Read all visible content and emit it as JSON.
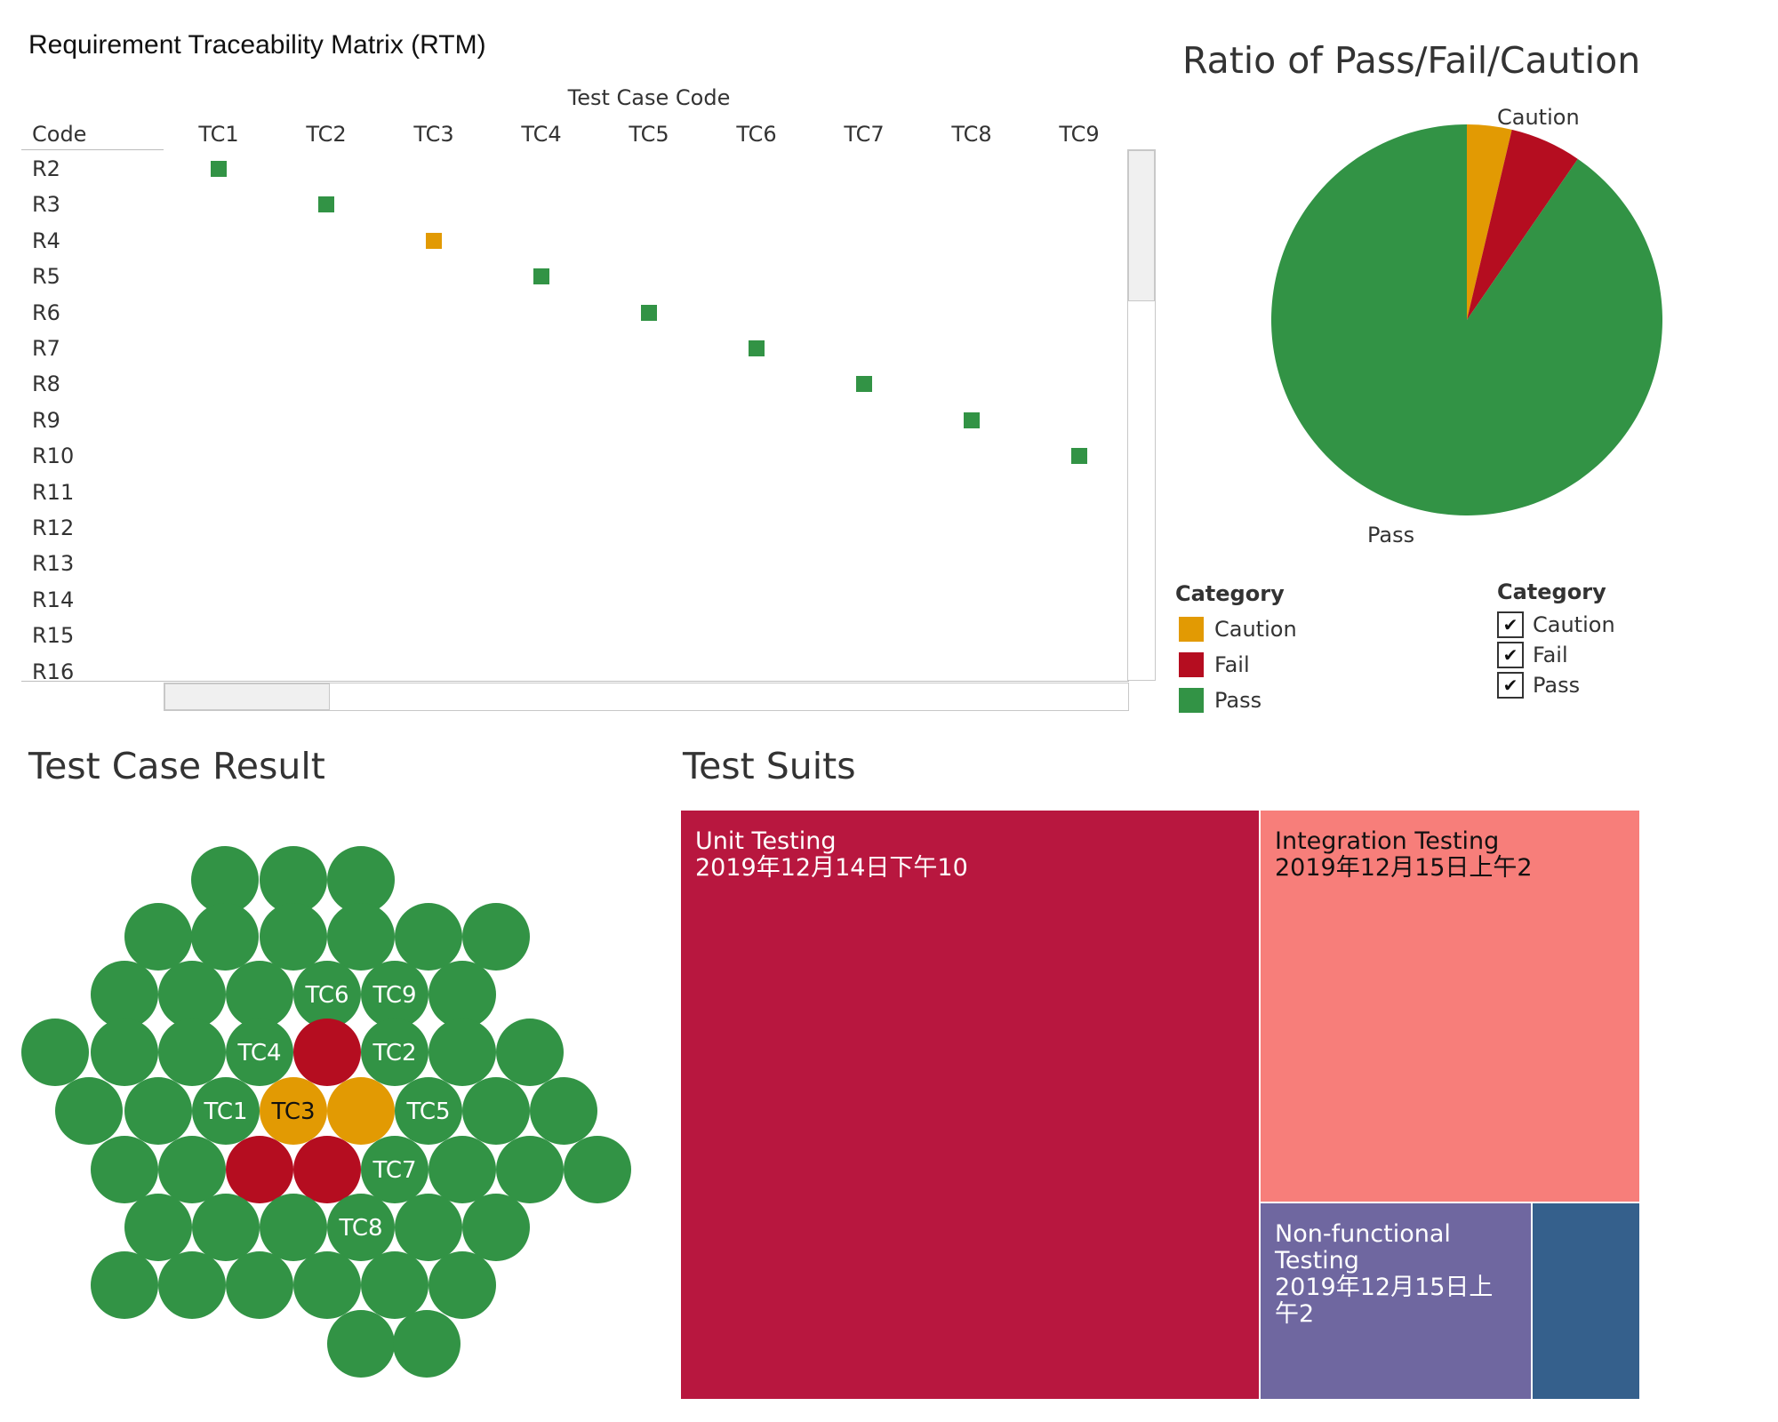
{
  "rtm": {
    "title": "Requirement Traceability Matrix (RTM)",
    "axis_title": "Test Case Code",
    "code_header": "Code",
    "columns": [
      "TC1",
      "TC2",
      "TC3",
      "TC4",
      "TC5",
      "TC6",
      "TC7",
      "TC8",
      "TC9"
    ],
    "rows": [
      "R2",
      "R3",
      "R4",
      "R5",
      "R6",
      "R7",
      "R8",
      "R9",
      "R10",
      "R11",
      "R12",
      "R13",
      "R14",
      "R15",
      "R16"
    ],
    "cells": [
      {
        "row": "R2",
        "col": "TC1",
        "category": "Pass"
      },
      {
        "row": "R3",
        "col": "TC2",
        "category": "Pass"
      },
      {
        "row": "R4",
        "col": "TC3",
        "category": "Caution"
      },
      {
        "row": "R5",
        "col": "TC4",
        "category": "Pass"
      },
      {
        "row": "R6",
        "col": "TC5",
        "category": "Pass"
      },
      {
        "row": "R7",
        "col": "TC6",
        "category": "Pass"
      },
      {
        "row": "R8",
        "col": "TC7",
        "category": "Pass"
      },
      {
        "row": "R9",
        "col": "TC8",
        "category": "Pass"
      },
      {
        "row": "R10",
        "col": "TC9",
        "category": "Pass"
      }
    ]
  },
  "pie": {
    "title": "Ratio of Pass/Fail/Caution",
    "labels": {
      "caution": "Caution",
      "pass": "Pass"
    }
  },
  "legend": {
    "title": "Category",
    "items": [
      "Caution",
      "Fail",
      "Pass"
    ]
  },
  "filter": {
    "title": "Category",
    "items": [
      {
        "label": "Caution",
        "checked": true
      },
      {
        "label": "Fail",
        "checked": true
      },
      {
        "label": "Pass",
        "checked": true
      }
    ],
    "check_glyph": "✔"
  },
  "bubbles": {
    "title": "Test Case Result"
  },
  "treemap": {
    "title": "Test Suits",
    "items": [
      {
        "name": "Unit Testing",
        "date": "2019年12月14日下午10",
        "color": "#b8173f",
        "text_color": "#ffffff"
      },
      {
        "name": "Integration Testing",
        "date": "2019年12月15日上午2",
        "color": "#f77e7a",
        "text_color": "#111111"
      },
      {
        "name": "Non-functional Testing",
        "date": "2019年12月15日上午2",
        "color": "#6f67a0",
        "text_color": "#ffffff"
      },
      {
        "name": "",
        "date": "",
        "color": "#35608c",
        "text_color": "#ffffff"
      }
    ]
  },
  "colors": {
    "Pass": "#329345",
    "Fail": "#b50d20",
    "Caution": "#e29a03"
  },
  "chart_data": [
    {
      "type": "heatmap",
      "title": "Requirement Traceability Matrix (RTM)",
      "xlabel": "Test Case Code",
      "ylabel": "Code",
      "x": [
        "TC1",
        "TC2",
        "TC3",
        "TC4",
        "TC5",
        "TC6",
        "TC7",
        "TC8",
        "TC9"
      ],
      "y": [
        "R2",
        "R3",
        "R4",
        "R5",
        "R6",
        "R7",
        "R8",
        "R9",
        "R10",
        "R11",
        "R12",
        "R13",
        "R14",
        "R15",
        "R16"
      ],
      "values": [
        {
          "x": "TC1",
          "y": "R2",
          "category": "Pass"
        },
        {
          "x": "TC2",
          "y": "R3",
          "category": "Pass"
        },
        {
          "x": "TC3",
          "y": "R4",
          "category": "Caution"
        },
        {
          "x": "TC4",
          "y": "R5",
          "category": "Pass"
        },
        {
          "x": "TC5",
          "y": "R6",
          "category": "Pass"
        },
        {
          "x": "TC6",
          "y": "R7",
          "category": "Pass"
        },
        {
          "x": "TC7",
          "y": "R8",
          "category": "Pass"
        },
        {
          "x": "TC8",
          "y": "R9",
          "category": "Pass"
        },
        {
          "x": "TC9",
          "y": "R10",
          "category": "Pass"
        }
      ]
    },
    {
      "type": "pie",
      "title": "Ratio of Pass/Fail/Caution",
      "categories": [
        "Caution",
        "Fail",
        "Pass"
      ],
      "values": [
        0.037,
        0.059,
        0.904
      ]
    },
    {
      "type": "scatter",
      "title": "Test Case Result",
      "series": [
        {
          "category": "Pass",
          "count": 57
        },
        {
          "category": "Fail",
          "count": 3
        },
        {
          "category": "Caution",
          "count": 2
        }
      ],
      "labeled": [
        {
          "label": "TC1",
          "category": "Pass"
        },
        {
          "label": "TC2",
          "category": "Pass"
        },
        {
          "label": "TC3",
          "category": "Caution"
        },
        {
          "label": "TC4",
          "category": "Pass"
        },
        {
          "label": "TC5",
          "category": "Pass"
        },
        {
          "label": "TC6",
          "category": "Pass"
        },
        {
          "label": "TC7",
          "category": "Pass"
        },
        {
          "label": "TC8",
          "category": "Pass"
        },
        {
          "label": "TC9",
          "category": "Pass"
        }
      ]
    },
    {
      "type": "treemap",
      "title": "Test Suits",
      "categories": [
        "Unit Testing",
        "Integration Testing",
        "Non-functional Testing",
        ""
      ],
      "values": [
        0.6,
        0.28,
        0.09,
        0.03
      ]
    }
  ]
}
